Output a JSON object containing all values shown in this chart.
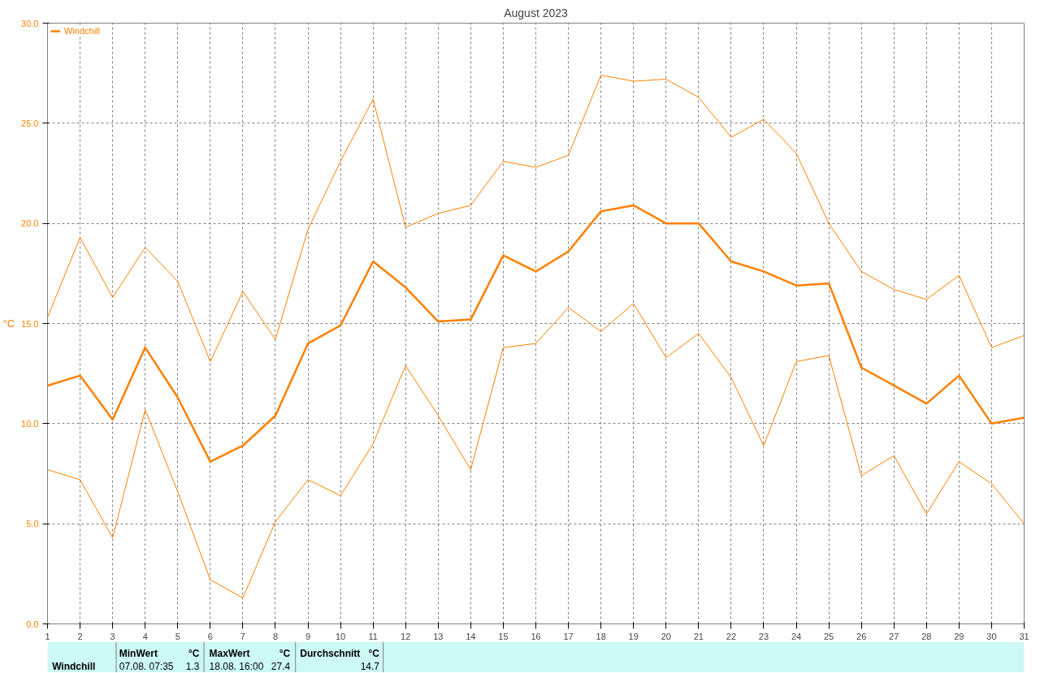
{
  "chart_data": {
    "type": "line",
    "title": "August 2023",
    "ylabel": "°C",
    "x": [
      1,
      2,
      3,
      4,
      5,
      6,
      7,
      8,
      9,
      10,
      11,
      12,
      13,
      14,
      15,
      16,
      17,
      18,
      19,
      20,
      21,
      22,
      23,
      24,
      25,
      26,
      27,
      28,
      29,
      30,
      31
    ],
    "xlim": [
      1,
      31
    ],
    "xticks": [
      1,
      2,
      3,
      4,
      5,
      6,
      7,
      8,
      9,
      10,
      11,
      12,
      13,
      14,
      15,
      16,
      17,
      18,
      19,
      20,
      21,
      22,
      23,
      24,
      25,
      26,
      27,
      28,
      29,
      30,
      31
    ],
    "ylim": [
      0,
      30
    ],
    "yticks": [
      {
        "value": 0,
        "label": "0.0"
      },
      {
        "value": 5,
        "label": "5.0"
      },
      {
        "value": 10,
        "label": "10.0"
      },
      {
        "value": 15,
        "label": "15.0"
      },
      {
        "value": 20,
        "label": "20.0"
      },
      {
        "value": 25,
        "label": "25.0"
      },
      {
        "value": 30,
        "label": "30.0"
      }
    ],
    "grid": true,
    "legend": "top left",
    "line_style": "solid",
    "series": [
      {
        "color": "#ff8000",
        "values": [
          15.3,
          19.3,
          16.3,
          18.8,
          17.1,
          13.1,
          16.6,
          14.2,
          19.7,
          23.1,
          26.2,
          19.8,
          20.5,
          20.9,
          23.1,
          22.8,
          23.4,
          27.4,
          27.1,
          27.2,
          26.3,
          24.3,
          25.2,
          23.5,
          20.0,
          17.6,
          16.7,
          16.2,
          17.4,
          13.8,
          14.4
        ]
      },
      {
        "name": "Windchill",
        "color": "#ff8000",
        "values": [
          11.9,
          12.4,
          10.2,
          13.8,
          11.3,
          8.1,
          8.9,
          10.4,
          14.0,
          14.9,
          18.1,
          16.8,
          15.1,
          15.2,
          18.4,
          17.6,
          18.6,
          20.6,
          20.9,
          20.0,
          20.0,
          18.1,
          17.6,
          16.9,
          17.0,
          12.8,
          11.9,
          11.0,
          12.4,
          10.0,
          10.3
        ]
      },
      {
        "color": "#ff8000",
        "values": [
          7.7,
          7.2,
          4.3,
          10.7,
          6.6,
          2.2,
          1.3,
          5.1,
          7.2,
          6.4,
          9.0,
          12.9,
          10.4,
          7.7,
          13.8,
          14.0,
          15.8,
          14.6,
          16.0,
          13.3,
          14.5,
          12.3,
          8.9,
          13.1,
          13.4,
          7.4,
          8.4,
          5.5,
          8.1,
          7.0,
          5.0
        ]
      }
    ],
    "annotations": [
      "Windchill",
      "MinWert",
      "°C",
      "07.08.  07:35",
      "1.3",
      "MaxWert",
      "°C",
      "18.08.  16:00",
      "27.4",
      "Durchschnitt",
      "°C",
      "14.7"
    ]
  }
}
